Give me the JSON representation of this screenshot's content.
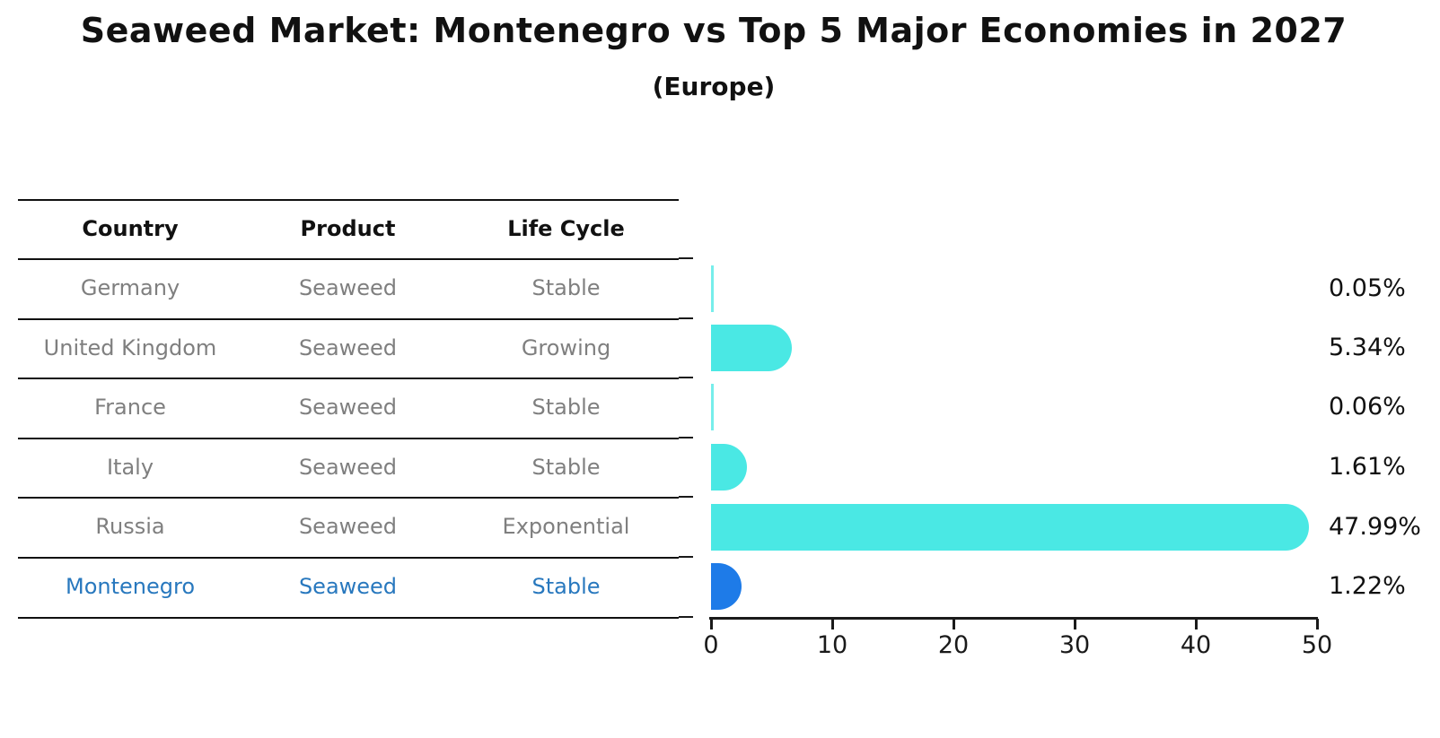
{
  "title": "Seaweed Market: Montenegro vs Top 5 Major Economies in 2027",
  "subtitle": "(Europe)",
  "table": {
    "headers": {
      "country": "Country",
      "product": "Product",
      "life_cycle": "Life Cycle"
    },
    "rows": [
      {
        "country": "Germany",
        "product": "Seaweed",
        "life_cycle": "Stable"
      },
      {
        "country": "United Kingdom",
        "product": "Seaweed",
        "life_cycle": "Growing"
      },
      {
        "country": "France",
        "product": "Seaweed",
        "life_cycle": "Stable"
      },
      {
        "country": "Italy",
        "product": "Seaweed",
        "life_cycle": "Stable"
      },
      {
        "country": "Russia",
        "product": "Seaweed",
        "life_cycle": "Exponential"
      },
      {
        "country": "Montenegro",
        "product": "Seaweed",
        "life_cycle": "Stable"
      }
    ]
  },
  "chart_data": {
    "type": "bar",
    "orientation": "horizontal",
    "title": "Seaweed Market: Montenegro vs Top 5 Major Economies in 2027",
    "subtitle": "(Europe)",
    "categories": [
      "Germany",
      "United Kingdom",
      "France",
      "Italy",
      "Russia",
      "Montenegro"
    ],
    "values": [
      0.05,
      5.34,
      0.06,
      1.61,
      47.99,
      1.22
    ],
    "value_labels": [
      "0.05%",
      "5.34%",
      "0.06%",
      "1.61%",
      "47.99%",
      "1.22%"
    ],
    "xlim": [
      0,
      50
    ],
    "x_ticks": [
      0,
      10,
      20,
      30,
      40,
      50
    ],
    "grid": false,
    "legend": false,
    "bar_colors": [
      "#4AE8E4",
      "#4AE8E4",
      "#4AE8E4",
      "#4AE8E4",
      "#4AE8E4",
      "#1E7BE8"
    ],
    "highlight_index": 5
  },
  "colors": {
    "bar_cyan": "#4AE8E4",
    "bar_blue": "#1E7BE8",
    "highlight_text": "#2878BE",
    "muted_text": "#7F7F7F",
    "axis": "#1A1A1A"
  }
}
